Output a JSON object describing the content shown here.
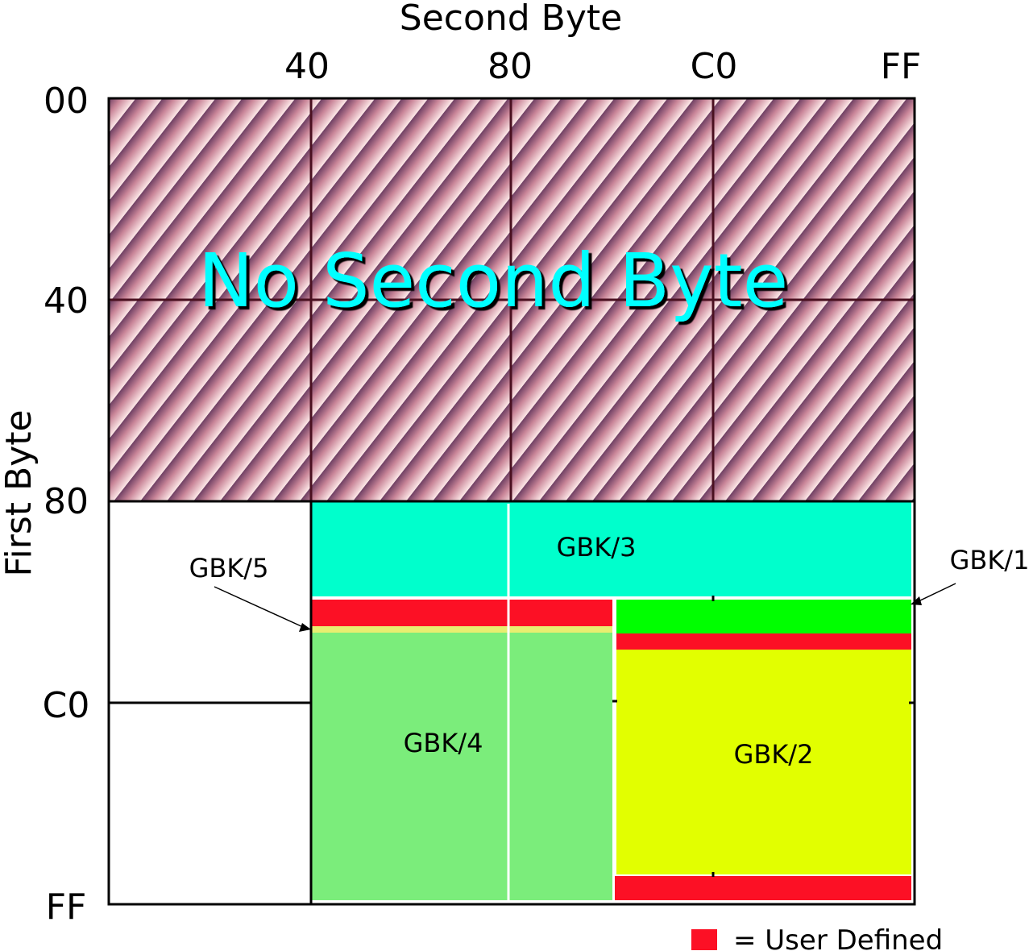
{
  "title_x": "Second Byte",
  "title_y": "First Byte",
  "x_ticks": [
    "40",
    "80",
    "C0",
    "FF"
  ],
  "y_ticks": [
    "00",
    "40",
    "80",
    "C0",
    "FF"
  ],
  "overlay_text": "No Second Byte",
  "regions": {
    "gbk1": "GBK/1",
    "gbk2": "GBK/2",
    "gbk3": "GBK/3",
    "gbk4": "GBK/4",
    "gbk5": "GBK/5"
  },
  "legend": {
    "label": "= User Defined",
    "color": "#fc1025"
  },
  "colors": {
    "gbk1": "#00ff00",
    "gbk2": "#e2ff00",
    "gbk3": "#00ffcc",
    "gbk4": "#7bed7b",
    "gbk5": "#e8ee70",
    "user_defined": "#fc1025",
    "overlay_text": "#00ffff",
    "hatch_light": "#fbe3e3",
    "hatch_dark": "#6e3f63"
  }
}
